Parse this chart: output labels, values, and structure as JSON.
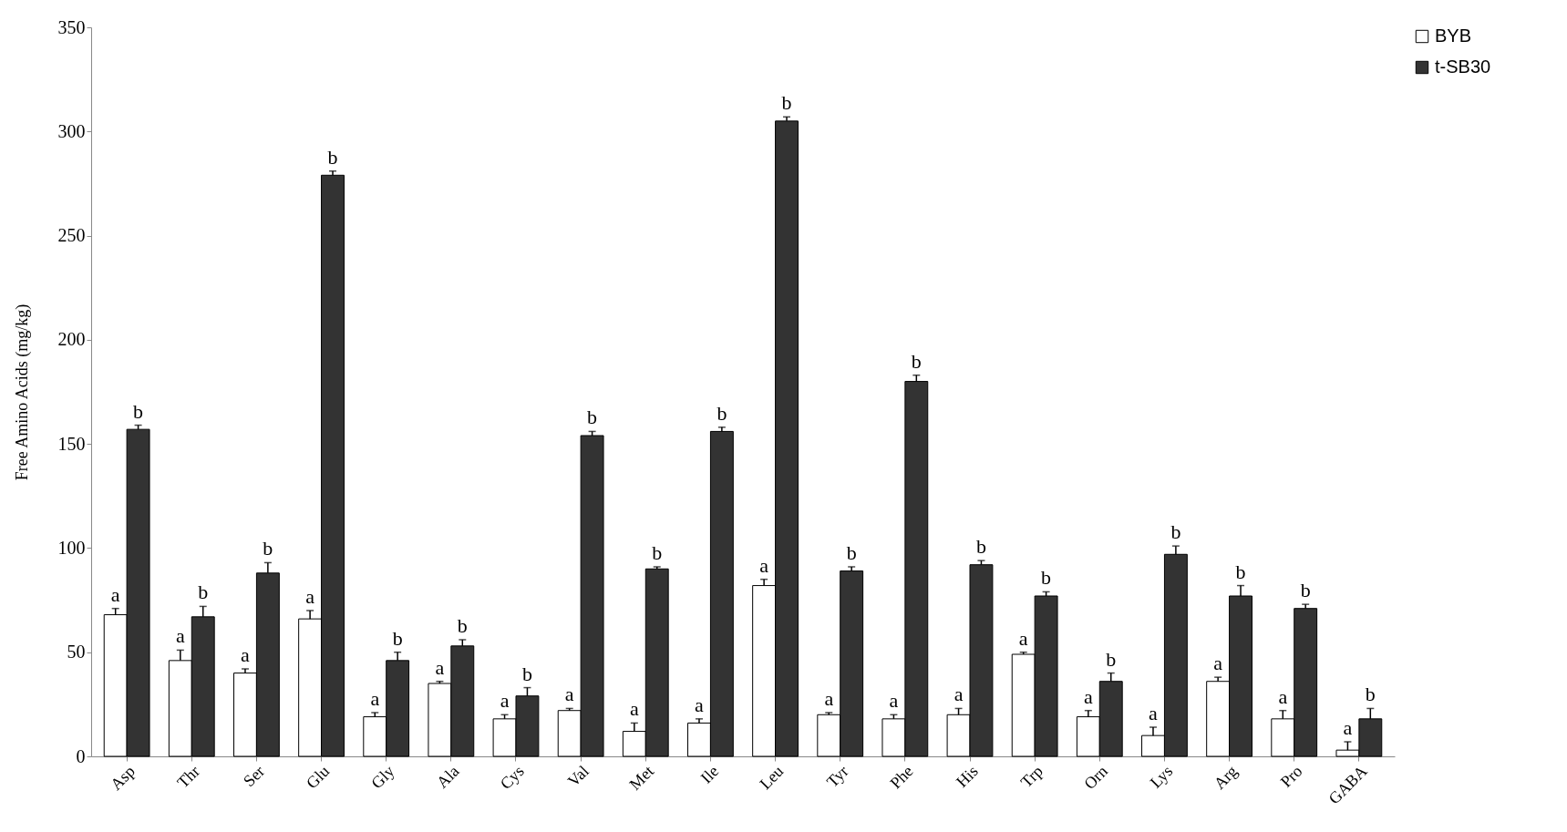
{
  "chart_data": {
    "type": "bar",
    "ylabel": "Free Amino Acids (mg/kg)",
    "categories": [
      "Asp",
      "Thr",
      "Ser",
      "Glu",
      "Gly",
      "Ala",
      "Cys",
      "Val",
      "Met",
      "Ile",
      "Leu",
      "Tyr",
      "Phe",
      "His",
      "Trp",
      "Orn",
      "Lys",
      "Arg",
      "Pro",
      "GABA"
    ],
    "series": [
      {
        "name": "BYB",
        "color": "#ffffff",
        "values": [
          68,
          46,
          40,
          66,
          19,
          35,
          18,
          22,
          12,
          16,
          82,
          20,
          18,
          20,
          49,
          19,
          10,
          36,
          18,
          3
        ],
        "errors": [
          [
            68,
            71
          ],
          [
            46,
            51
          ],
          [
            40,
            42
          ],
          [
            66,
            70
          ],
          [
            19,
            21
          ],
          [
            35,
            36
          ],
          [
            18,
            20
          ],
          [
            22,
            23
          ],
          [
            12,
            16
          ],
          [
            16,
            18
          ],
          [
            82,
            85
          ],
          [
            20,
            21
          ],
          [
            18,
            20
          ],
          [
            20,
            23
          ],
          [
            49,
            50
          ],
          [
            19,
            22
          ],
          [
            10,
            14
          ],
          [
            36,
            38
          ],
          [
            18,
            22
          ],
          [
            3,
            7
          ]
        ]
      },
      {
        "name": "t-SB30",
        "color": "#333333",
        "values": [
          157,
          67,
          88,
          279,
          46,
          53,
          29,
          154,
          90,
          156,
          305,
          89,
          180,
          92,
          77,
          36,
          97,
          77,
          71,
          18
        ],
        "errors": [
          [
            157,
            159
          ],
          [
            67,
            72
          ],
          [
            88,
            93
          ],
          [
            279,
            281
          ],
          [
            46,
            50
          ],
          [
            53,
            56
          ],
          [
            29,
            33
          ],
          [
            154,
            156
          ],
          [
            90,
            91
          ],
          [
            156,
            158
          ],
          [
            305,
            307
          ],
          [
            89,
            91
          ],
          [
            180,
            183
          ],
          [
            92,
            94
          ],
          [
            77,
            79
          ],
          [
            36,
            40
          ],
          [
            97,
            101
          ],
          [
            77,
            82
          ],
          [
            71,
            73
          ],
          [
            18,
            23
          ]
        ]
      }
    ],
    "ylim": [
      0,
      350
    ],
    "yticks": [
      0,
      50,
      100,
      150,
      200,
      250,
      300,
      350
    ],
    "grid": false,
    "legend": "right",
    "annotations": [
      {
        "text": "a",
        "x": "Asp",
        "y": 68
      },
      {
        "text": "b",
        "x": "Asp",
        "y": 157
      },
      {
        "text": "a",
        "x": "Thr",
        "y": 46
      },
      {
        "text": "b",
        "x": "Thr",
        "y": 67
      },
      {
        "text": "a",
        "x": "Ser",
        "y": 40
      },
      {
        "text": "b",
        "x": "Ser",
        "y": 88
      },
      {
        "text": "a",
        "x": "Glu",
        "y": 66
      },
      {
        "text": "b",
        "x": "Glu",
        "y": 279
      },
      {
        "text": "a",
        "x": "Gly",
        "y": 19
      },
      {
        "text": "b",
        "x": "Gly",
        "y": 46
      },
      {
        "text": "a",
        "x": "Ala",
        "y": 35
      },
      {
        "text": "b",
        "x": "Ala",
        "y": 53
      },
      {
        "text": "a",
        "x": "Cys",
        "y": 18
      },
      {
        "text": "b",
        "x": "Cys",
        "y": 29
      },
      {
        "text": "a",
        "x": "Val",
        "y": 22
      },
      {
        "text": "b",
        "x": "Val",
        "y": 154
      },
      {
        "text": "a",
        "x": "Met",
        "y": 12
      },
      {
        "text": "b",
        "x": "Met",
        "y": 90
      },
      {
        "text": "a",
        "x": "Ile",
        "y": 16
      },
      {
        "text": "b",
        "x": "Ile",
        "y": 156
      },
      {
        "text": "a",
        "x": "Leu",
        "y": 82
      },
      {
        "text": "b",
        "x": "Leu",
        "y": 305
      },
      {
        "text": "a",
        "x": "Tyr",
        "y": 20
      },
      {
        "text": "b",
        "x": "Tyr",
        "y": 89
      },
      {
        "text": "a",
        "x": "Phe",
        "y": 18
      },
      {
        "text": "b",
        "x": "Phe",
        "y": 180
      },
      {
        "text": "a",
        "x": "His",
        "y": 20
      },
      {
        "text": "b",
        "x": "His",
        "y": 92
      },
      {
        "text": "a",
        "x": "Trp",
        "y": 49
      },
      {
        "text": "b",
        "x": "Trp",
        "y": 77
      },
      {
        "text": "a",
        "x": "Orn",
        "y": 19
      },
      {
        "text": "b",
        "x": "Orn",
        "y": 36
      },
      {
        "text": "a",
        "x": "Lys",
        "y": 10
      },
      {
        "text": "b",
        "x": "Lys",
        "y": 97
      },
      {
        "text": "a",
        "x": "Arg",
        "y": 36
      },
      {
        "text": "b",
        "x": "Arg",
        "y": 77
      },
      {
        "text": "a",
        "x": "Pro",
        "y": 18
      },
      {
        "text": "b",
        "x": "Pro",
        "y": 71
      },
      {
        "text": "a",
        "x": "GABA",
        "y": 3
      },
      {
        "text": "b",
        "x": "GABA",
        "y": 18
      }
    ]
  }
}
